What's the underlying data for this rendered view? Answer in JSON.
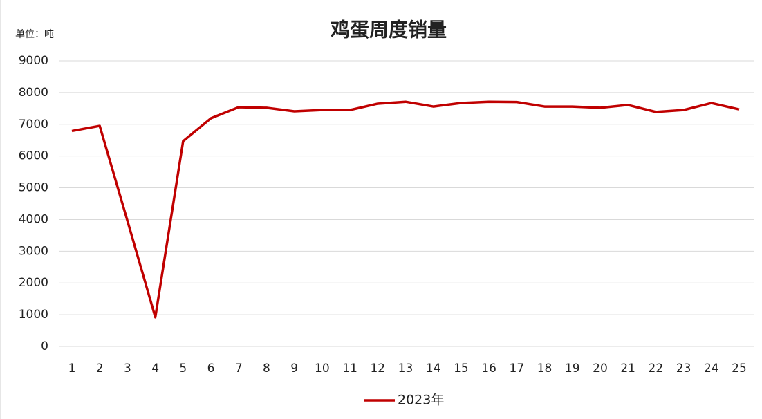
{
  "chart_data": {
    "type": "line",
    "title": "鸡蛋周度销量",
    "unit_label": "单位：吨",
    "categories": [
      "1",
      "2",
      "3",
      "4",
      "5",
      "6",
      "7",
      "8",
      "9",
      "10",
      "11",
      "12",
      "13",
      "14",
      "15",
      "16",
      "17",
      "18",
      "19",
      "20",
      "21",
      "22",
      "23",
      "24",
      "25"
    ],
    "series": [
      {
        "name": "2023年",
        "color": "#c00000",
        "values": [
          6790,
          6950,
          3950,
          920,
          6470,
          7190,
          7540,
          7520,
          7410,
          7450,
          7450,
          7650,
          7710,
          7560,
          7670,
          7710,
          7700,
          7560,
          7560,
          7520,
          7610,
          7390,
          7450,
          7670,
          7470
        ]
      }
    ],
    "ylim": [
      0,
      9000
    ],
    "yticks": [
      0,
      1000,
      2000,
      3000,
      4000,
      5000,
      6000,
      7000,
      8000,
      9000
    ],
    "grid": true,
    "legend": "bottom"
  }
}
